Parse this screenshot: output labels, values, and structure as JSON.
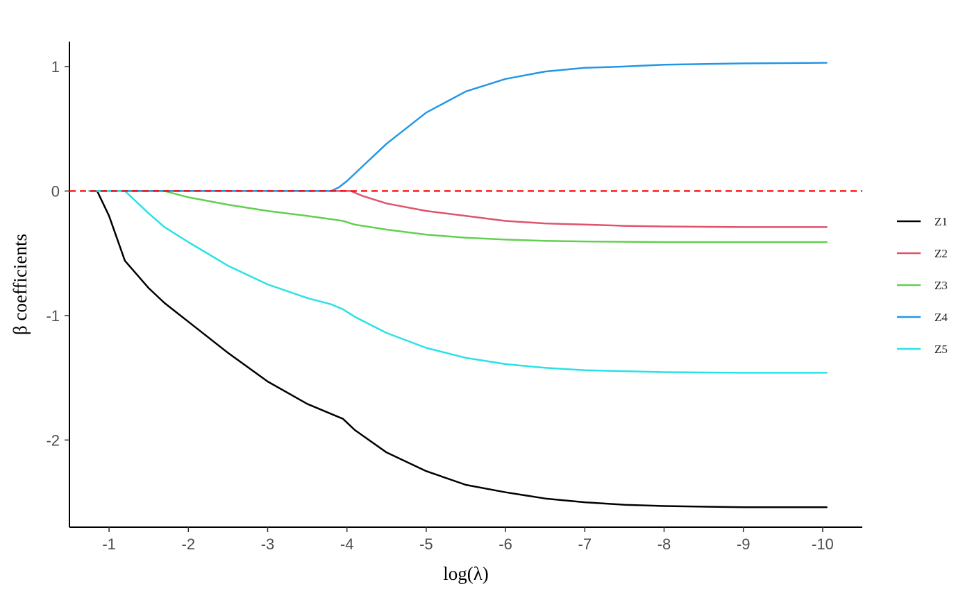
{
  "chart_data": {
    "type": "line",
    "title": "",
    "xlabel": "log(λ)",
    "ylabel": "β coefficients",
    "x_reversed": true,
    "xlim": [
      -0.5,
      -10.5
    ],
    "ylim": [
      -2.7,
      1.2
    ],
    "xticks": [
      -1,
      -2,
      -3,
      -4,
      -5,
      -6,
      -7,
      -8,
      -9,
      -10
    ],
    "xtick_labels": [
      "-1",
      "-2",
      "-3",
      "-4",
      "-5",
      "-6",
      "-7",
      "-8",
      "-9",
      "-10"
    ],
    "yticks": [
      1,
      0,
      -1,
      -2
    ],
    "ytick_labels": [
      "1",
      "0",
      "-1",
      "-2"
    ],
    "grid": false,
    "legend_position": "right",
    "reference_line": {
      "y": 0,
      "color": "#ff0000",
      "style": "dashed"
    },
    "series": [
      {
        "name": "Z1",
        "color": "#000000",
        "points": [
          [
            -0.75,
            0
          ],
          [
            -0.85,
            0
          ],
          [
            -1.0,
            -0.2
          ],
          [
            -1.2,
            -0.56
          ],
          [
            -1.5,
            -0.78
          ],
          [
            -1.7,
            -0.9
          ],
          [
            -2.0,
            -1.05
          ],
          [
            -2.5,
            -1.3
          ],
          [
            -3.0,
            -1.53
          ],
          [
            -3.5,
            -1.71
          ],
          [
            -3.8,
            -1.79
          ],
          [
            -3.95,
            -1.83
          ],
          [
            -4.1,
            -1.92
          ],
          [
            -4.5,
            -2.1
          ],
          [
            -5.0,
            -2.25
          ],
          [
            -5.5,
            -2.36
          ],
          [
            -6.0,
            -2.42
          ],
          [
            -6.5,
            -2.47
          ],
          [
            -7.0,
            -2.5
          ],
          [
            -7.5,
            -2.52
          ],
          [
            -8.0,
            -2.53
          ],
          [
            -9.0,
            -2.54
          ],
          [
            -10.05,
            -2.54
          ]
        ]
      },
      {
        "name": "Z2",
        "color": "#df536b",
        "points": [
          [
            -0.75,
            0
          ],
          [
            -4.05,
            0
          ],
          [
            -4.2,
            -0.04
          ],
          [
            -4.5,
            -0.1
          ],
          [
            -5.0,
            -0.16
          ],
          [
            -5.5,
            -0.2
          ],
          [
            -6.0,
            -0.24
          ],
          [
            -6.5,
            -0.26
          ],
          [
            -7.0,
            -0.27
          ],
          [
            -7.5,
            -0.28
          ],
          [
            -8.0,
            -0.285
          ],
          [
            -9.0,
            -0.29
          ],
          [
            -10.05,
            -0.29
          ]
        ]
      },
      {
        "name": "Z3",
        "color": "#61d04f",
        "points": [
          [
            -0.75,
            0
          ],
          [
            -1.7,
            0
          ],
          [
            -2.0,
            -0.05
          ],
          [
            -2.5,
            -0.11
          ],
          [
            -3.0,
            -0.16
          ],
          [
            -3.5,
            -0.2
          ],
          [
            -3.85,
            -0.23
          ],
          [
            -3.95,
            -0.24
          ],
          [
            -4.1,
            -0.27
          ],
          [
            -4.5,
            -0.31
          ],
          [
            -5.0,
            -0.35
          ],
          [
            -5.5,
            -0.375
          ],
          [
            -6.0,
            -0.39
          ],
          [
            -6.5,
            -0.4
          ],
          [
            -7.0,
            -0.405
          ],
          [
            -8.0,
            -0.41
          ],
          [
            -9.0,
            -0.41
          ],
          [
            -10.05,
            -0.41
          ]
        ]
      },
      {
        "name": "Z4",
        "color": "#2297e6",
        "points": [
          [
            -0.75,
            0
          ],
          [
            -3.8,
            0
          ],
          [
            -3.9,
            0.03
          ],
          [
            -4.0,
            0.08
          ],
          [
            -4.2,
            0.2
          ],
          [
            -4.5,
            0.38
          ],
          [
            -5.0,
            0.63
          ],
          [
            -5.5,
            0.8
          ],
          [
            -6.0,
            0.9
          ],
          [
            -6.5,
            0.96
          ],
          [
            -7.0,
            0.99
          ],
          [
            -7.5,
            1.0
          ],
          [
            -8.0,
            1.015
          ],
          [
            -9.0,
            1.025
          ],
          [
            -10.05,
            1.03
          ]
        ]
      },
      {
        "name": "Z5",
        "color": "#28e2e5",
        "points": [
          [
            -0.75,
            0
          ],
          [
            -1.2,
            0
          ],
          [
            -1.5,
            -0.18
          ],
          [
            -1.7,
            -0.29
          ],
          [
            -2.0,
            -0.41
          ],
          [
            -2.5,
            -0.6
          ],
          [
            -3.0,
            -0.75
          ],
          [
            -3.5,
            -0.86
          ],
          [
            -3.8,
            -0.91
          ],
          [
            -3.95,
            -0.95
          ],
          [
            -4.1,
            -1.01
          ],
          [
            -4.5,
            -1.14
          ],
          [
            -5.0,
            -1.26
          ],
          [
            -5.5,
            -1.34
          ],
          [
            -6.0,
            -1.39
          ],
          [
            -6.5,
            -1.42
          ],
          [
            -7.0,
            -1.44
          ],
          [
            -8.0,
            -1.455
          ],
          [
            -9.0,
            -1.46
          ],
          [
            -10.05,
            -1.46
          ]
        ]
      }
    ]
  }
}
